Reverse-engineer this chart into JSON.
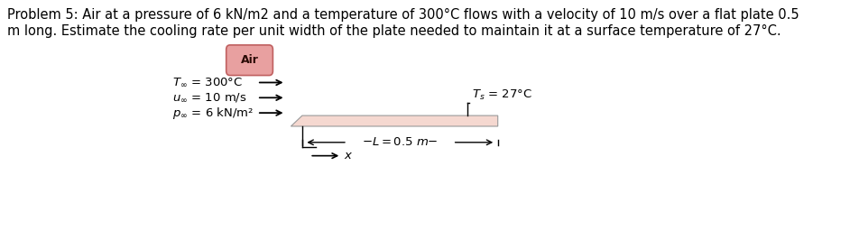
{
  "title_line1": "Problem 5: Air at a pressure of 6 kN/m2 and a temperature of 300°C flows with a velocity of 10 m/s over a flat plate 0.5",
  "title_line2": "m long. Estimate the cooling rate per unit width of the plate needed to maintain it at a surface temperature of 27°C.",
  "air_label": "Air",
  "air_bubble_facecolor": "#e8a0a0",
  "air_bubble_edgecolor": "#c06060",
  "plate_fill_color": "#f5d8d0",
  "label_T": "T_∞ = 300°C",
  "label_u": "u_∞ = 10 m/s",
  "label_p": "p_∞ = 6 kN/m²",
  "label_Ts": "T_s = 27°C",
  "label_L": "L = 0.5 m",
  "label_x": "x",
  "bg_color": "#ffffff",
  "text_color": "#000000",
  "fontsize_title": 10.5,
  "fontsize_diagram": 9.5
}
